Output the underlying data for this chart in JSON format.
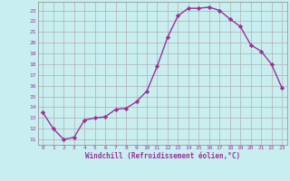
{
  "x": [
    0,
    1,
    2,
    3,
    4,
    5,
    6,
    7,
    8,
    9,
    10,
    11,
    12,
    13,
    14,
    15,
    16,
    17,
    18,
    19,
    20,
    21,
    22,
    23
  ],
  "y": [
    13.5,
    12.0,
    11.0,
    11.2,
    12.8,
    13.0,
    13.1,
    13.8,
    13.9,
    14.5,
    15.5,
    17.8,
    20.5,
    22.5,
    23.2,
    23.2,
    23.3,
    23.0,
    22.2,
    21.5,
    19.8,
    19.2,
    18.0,
    15.8
  ],
  "line_color": "#993399",
  "marker": "D",
  "markersize": 2.2,
  "linewidth": 1.0,
  "bg_color": "#c8eef0",
  "grid_color": "#b0b0b0",
  "xlabel": "Windchill (Refroidissement éolien,°C)",
  "xlabel_color": "#993399",
  "tick_color": "#993399",
  "ylim": [
    10.5,
    23.8
  ],
  "xlim": [
    -0.5,
    23.5
  ],
  "yticks": [
    11,
    12,
    13,
    14,
    15,
    16,
    17,
    18,
    19,
    20,
    21,
    22,
    23
  ],
  "xticks": [
    0,
    1,
    2,
    3,
    4,
    5,
    6,
    7,
    8,
    9,
    10,
    11,
    12,
    13,
    14,
    15,
    16,
    17,
    18,
    19,
    20,
    21,
    22,
    23
  ]
}
